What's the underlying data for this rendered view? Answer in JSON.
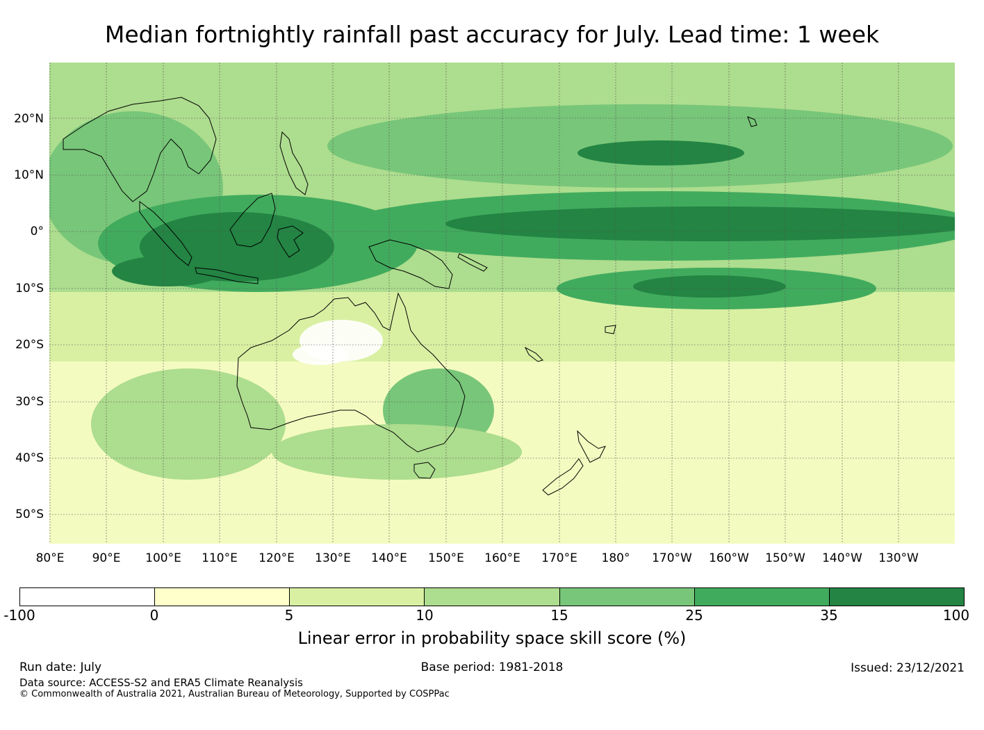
{
  "title": "Median fortnightly rainfall past accuracy for July. Lead time: 1 week",
  "map": {
    "lat_labels": [
      "20°N",
      "10°N",
      "0°",
      "10°S",
      "20°S",
      "30°S",
      "40°S",
      "50°S"
    ],
    "lon_labels": [
      "80°E",
      "90°E",
      "100°E",
      "110°E",
      "120°E",
      "130°E",
      "140°E",
      "150°E",
      "160°E",
      "170°E",
      "180°",
      "170°W",
      "160°W",
      "150°W",
      "140°W",
      "130°W"
    ]
  },
  "legend": {
    "colors": [
      "#ffffff",
      "#ffffcc",
      "#d9f0a3",
      "#addd8e",
      "#78c679",
      "#41ab5d",
      "#238443"
    ],
    "ticks": [
      "-100",
      "0",
      "5",
      "10",
      "15",
      "25",
      "35",
      "100"
    ],
    "label": "Linear error in probability space skill score (%)"
  },
  "footer": {
    "run_date": "Run date: July",
    "base_period": "Base period: 1981-2018",
    "issued": "Issued: 23/12/2021",
    "data_source": "Data source: ACCESS-S2 and ERA5 Climate Reanalysis",
    "copyright": "© Commonwealth of Australia 2021, Australian Bureau of Meteorology, Supported by COSPPac"
  }
}
